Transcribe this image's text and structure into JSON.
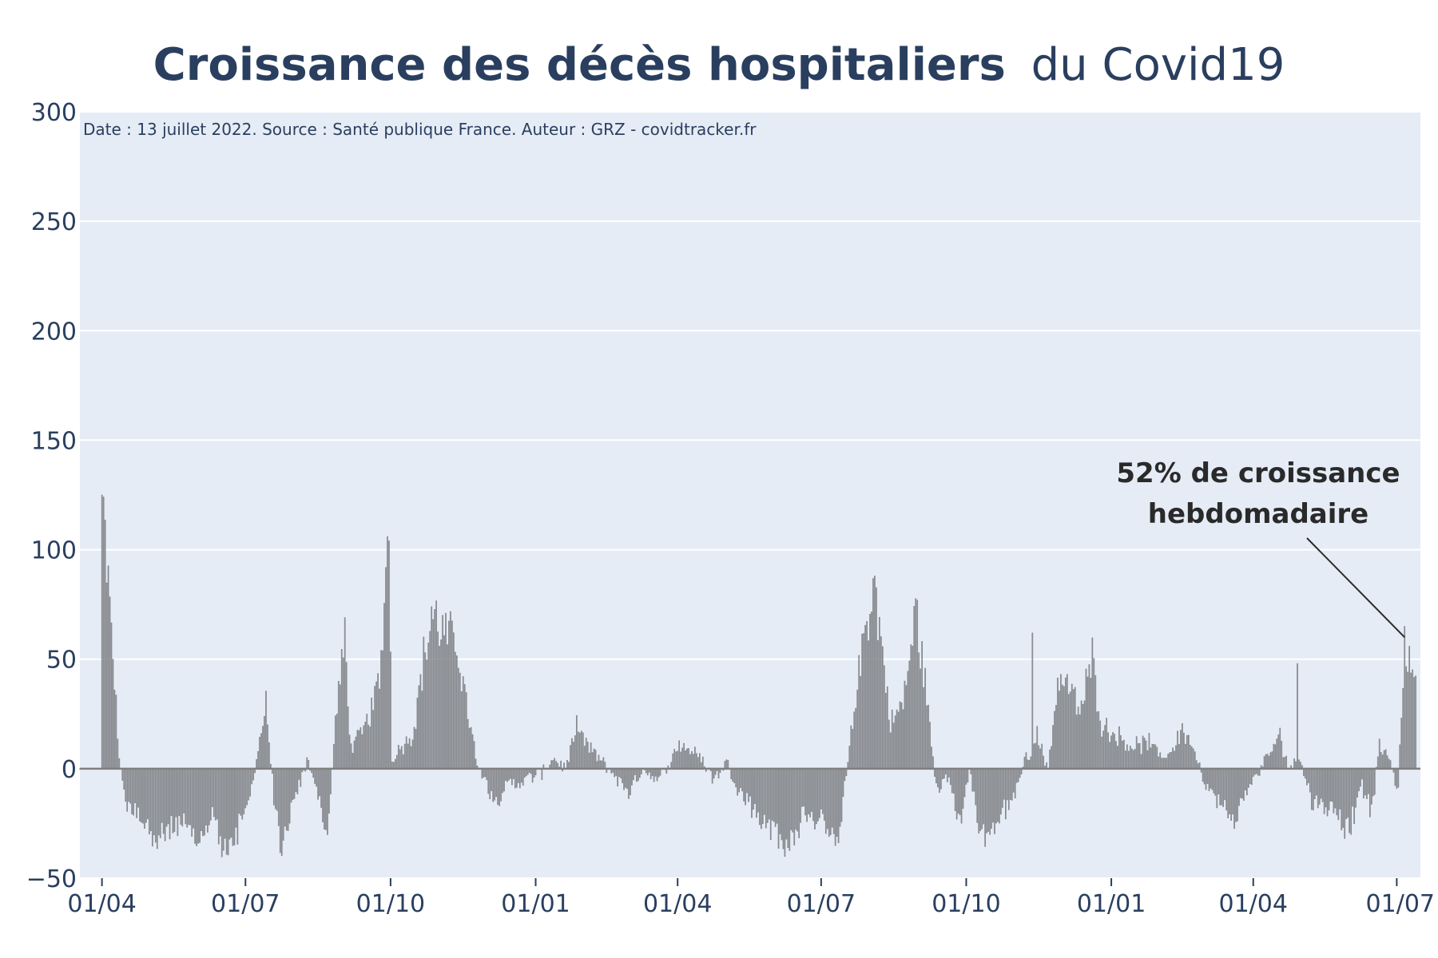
{
  "title": {
    "bold": "Croissance des décès hospitaliers",
    "normal": "du Covid19"
  },
  "source_note": "Date : 13 juillet 2022. Source : Santé publique France. Auteur : GRZ - covidtracker.fr",
  "annotation": {
    "line1": "52% de croissance",
    "line2": "hebdomadaire",
    "x": "2022-07-06",
    "y": 60
  },
  "colors": {
    "plot_bg": "#e5ecf6",
    "grid": "#ffffff",
    "bar": "#6e6e6e",
    "bar_fill": "#9aa0aa",
    "text": "#2a3f5f",
    "baseline": "#7f7f7f"
  },
  "chart_data": {
    "type": "bar",
    "title": "Croissance des décès hospitaliers du Covid19",
    "xlabel": "",
    "ylabel": "",
    "ylim": [
      -50,
      300
    ],
    "yticks": [
      -50,
      0,
      50,
      100,
      150,
      200,
      250,
      300
    ],
    "xlim": [
      "2020-03-18",
      "2022-07-16"
    ],
    "xticks": [
      {
        "date": "2020-04-01",
        "label": "01/04"
      },
      {
        "date": "2020-07-01",
        "label": "01/07"
      },
      {
        "date": "2020-10-01",
        "label": "01/10"
      },
      {
        "date": "2021-01-01",
        "label": "01/01"
      },
      {
        "date": "2021-04-01",
        "label": "01/04"
      },
      {
        "date": "2021-07-01",
        "label": "01/07"
      },
      {
        "date": "2021-10-01",
        "label": "01/10"
      },
      {
        "date": "2022-01-01",
        "label": "01/01"
      },
      {
        "date": "2022-04-01",
        "label": "01/04"
      },
      {
        "date": "2022-07-01",
        "label": "01/07"
      }
    ],
    "grid": true,
    "series": [
      {
        "values_unit": "percent weekly growth",
        "keypoints": [
          [
            "2020-03-18",
            0
          ],
          [
            "2020-03-31",
            0
          ],
          [
            "2020-04-01",
            125
          ],
          [
            "2020-04-04",
            95
          ],
          [
            "2020-04-08",
            50
          ],
          [
            "2020-04-12",
            5
          ],
          [
            "2020-04-16",
            -15
          ],
          [
            "2020-04-25",
            -20
          ],
          [
            "2020-05-05",
            -33
          ],
          [
            "2020-05-20",
            -25
          ],
          [
            "2020-06-01",
            -35
          ],
          [
            "2020-06-10",
            -20
          ],
          [
            "2020-06-18",
            -40
          ],
          [
            "2020-06-25",
            -30
          ],
          [
            "2020-07-02",
            -20
          ],
          [
            "2020-07-08",
            5
          ],
          [
            "2020-07-14",
            28
          ],
          [
            "2020-07-18",
            -5
          ],
          [
            "2020-07-23",
            -38
          ],
          [
            "2020-08-01",
            -15
          ],
          [
            "2020-08-10",
            5
          ],
          [
            "2020-08-15",
            -10
          ],
          [
            "2020-08-22",
            -30
          ],
          [
            "2020-08-28",
            30
          ],
          [
            "2020-09-02",
            55
          ],
          [
            "2020-09-06",
            10
          ],
          [
            "2020-09-12",
            15
          ],
          [
            "2020-09-18",
            25
          ],
          [
            "2020-09-24",
            40
          ],
          [
            "2020-09-28",
            88
          ],
          [
            "2020-09-30",
            100
          ],
          [
            "2020-10-02",
            5
          ],
          [
            "2020-10-08",
            10
          ],
          [
            "2020-10-15",
            15
          ],
          [
            "2020-10-22",
            50
          ],
          [
            "2020-10-28",
            70
          ],
          [
            "2020-11-05",
            60
          ],
          [
            "2020-11-12",
            58
          ],
          [
            "2020-11-18",
            30
          ],
          [
            "2020-11-24",
            5
          ],
          [
            "2020-11-30",
            -5
          ],
          [
            "2020-12-06",
            -15
          ],
          [
            "2020-12-14",
            -8
          ],
          [
            "2020-12-25",
            -5
          ],
          [
            "2021-01-05",
            -2
          ],
          [
            "2021-01-12",
            5
          ],
          [
            "2021-01-20",
            0
          ],
          [
            "2021-01-27",
            18
          ],
          [
            "2021-02-03",
            10
          ],
          [
            "2021-02-12",
            3
          ],
          [
            "2021-02-20",
            -3
          ],
          [
            "2021-03-01",
            -10
          ],
          [
            "2021-03-10",
            0
          ],
          [
            "2021-03-20",
            -5
          ],
          [
            "2021-03-27",
            3
          ],
          [
            "2021-04-02",
            12
          ],
          [
            "2021-04-10",
            8
          ],
          [
            "2021-04-16",
            5
          ],
          [
            "2021-04-24",
            -5
          ],
          [
            "2021-05-02",
            3
          ],
          [
            "2021-05-10",
            -10
          ],
          [
            "2021-05-20",
            -20
          ],
          [
            "2021-06-01",
            -28
          ],
          [
            "2021-06-10",
            -35
          ],
          [
            "2021-06-20",
            -22
          ],
          [
            "2021-07-01",
            -25
          ],
          [
            "2021-07-12",
            -30
          ],
          [
            "2021-07-20",
            15
          ],
          [
            "2021-07-28",
            60
          ],
          [
            "2021-08-03",
            85
          ],
          [
            "2021-08-08",
            60
          ],
          [
            "2021-08-14",
            20
          ],
          [
            "2021-08-22",
            30
          ],
          [
            "2021-08-30",
            70
          ],
          [
            "2021-09-05",
            40
          ],
          [
            "2021-09-12",
            -10
          ],
          [
            "2021-09-20",
            -5
          ],
          [
            "2021-09-27",
            -25
          ],
          [
            "2021-10-03",
            0
          ],
          [
            "2021-10-10",
            -30
          ],
          [
            "2021-10-20",
            -25
          ],
          [
            "2021-11-01",
            -10
          ],
          [
            "2021-11-08",
            5
          ],
          [
            "2021-11-15",
            15
          ],
          [
            "2021-11-22",
            0
          ],
          [
            "2021-11-28",
            40
          ],
          [
            "2021-12-05",
            38
          ],
          [
            "2021-12-12",
            25
          ],
          [
            "2021-12-20",
            50
          ],
          [
            "2021-12-26",
            20
          ],
          [
            "2022-01-05",
            15
          ],
          [
            "2022-01-15",
            10
          ],
          [
            "2022-01-25",
            12
          ],
          [
            "2022-02-01",
            5
          ],
          [
            "2022-02-08",
            8
          ],
          [
            "2022-02-15",
            18
          ],
          [
            "2022-02-22",
            10
          ],
          [
            "2022-03-01",
            -5
          ],
          [
            "2022-03-10",
            -15
          ],
          [
            "2022-03-20",
            -22
          ],
          [
            "2022-04-01",
            -5
          ],
          [
            "2022-04-10",
            5
          ],
          [
            "2022-04-18",
            15
          ],
          [
            "2022-04-24",
            0
          ],
          [
            "2022-05-01",
            5
          ],
          [
            "2022-05-08",
            -15
          ],
          [
            "2022-05-20",
            -18
          ],
          [
            "2022-06-01",
            -30
          ],
          [
            "2022-06-08",
            -5
          ],
          [
            "2022-06-15",
            -20
          ],
          [
            "2022-06-20",
            10
          ],
          [
            "2022-06-26",
            5
          ],
          [
            "2022-07-02",
            -10
          ],
          [
            "2022-07-06",
            60
          ],
          [
            "2022-07-09",
            45
          ],
          [
            "2022-07-13",
            50
          ]
        ],
        "spikes": [
          [
            "2020-04-01",
            125
          ],
          [
            "2020-09-02",
            69
          ],
          [
            "2020-09-29",
            106
          ],
          [
            "2020-10-27",
            74
          ],
          [
            "2021-08-04",
            88
          ],
          [
            "2021-08-31",
            77
          ],
          [
            "2021-11-12",
            62
          ],
          [
            "2022-04-29",
            48
          ],
          [
            "2022-07-06",
            65
          ]
        ]
      }
    ]
  }
}
